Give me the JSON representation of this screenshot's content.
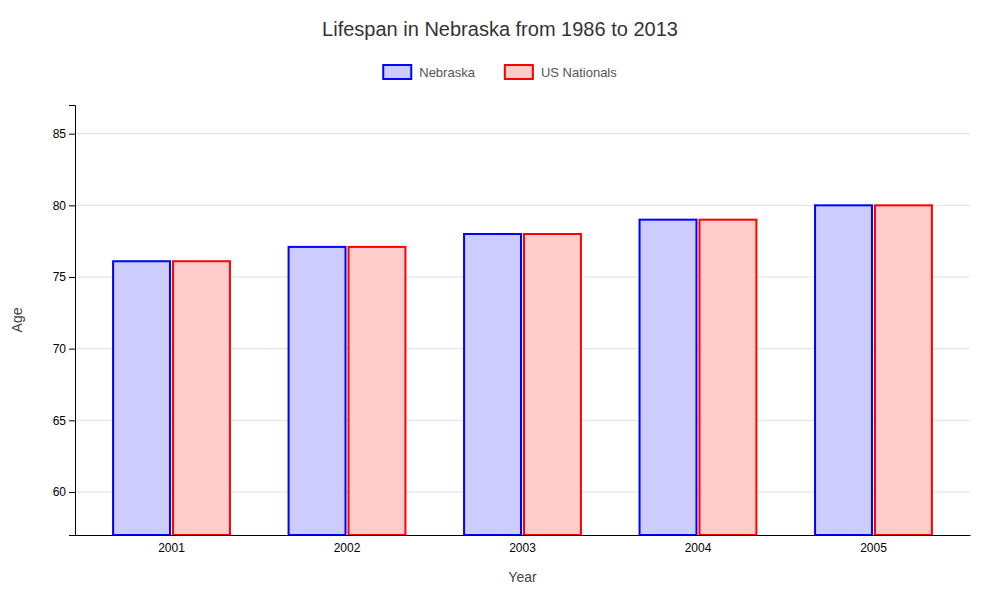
{
  "chart_data": {
    "type": "bar",
    "title": "Lifespan in Nebraska from 1986 to 2013",
    "xlabel": "Year",
    "ylabel": "Age",
    "categories": [
      "2001",
      "2002",
      "2003",
      "2004",
      "2005"
    ],
    "series": [
      {
        "name": "Nebraska",
        "color": "#0000ff",
        "values": [
          76.1,
          77.1,
          78.0,
          79.0,
          80.0
        ]
      },
      {
        "name": "US Nationals",
        "color": "#ff0000",
        "values": [
          76.1,
          77.1,
          78.0,
          79.0,
          80.0
        ]
      }
    ],
    "ylim": [
      57,
      87
    ],
    "yticks": [
      60,
      65,
      70,
      75,
      80,
      85
    ],
    "grid": true,
    "legend": "top"
  }
}
